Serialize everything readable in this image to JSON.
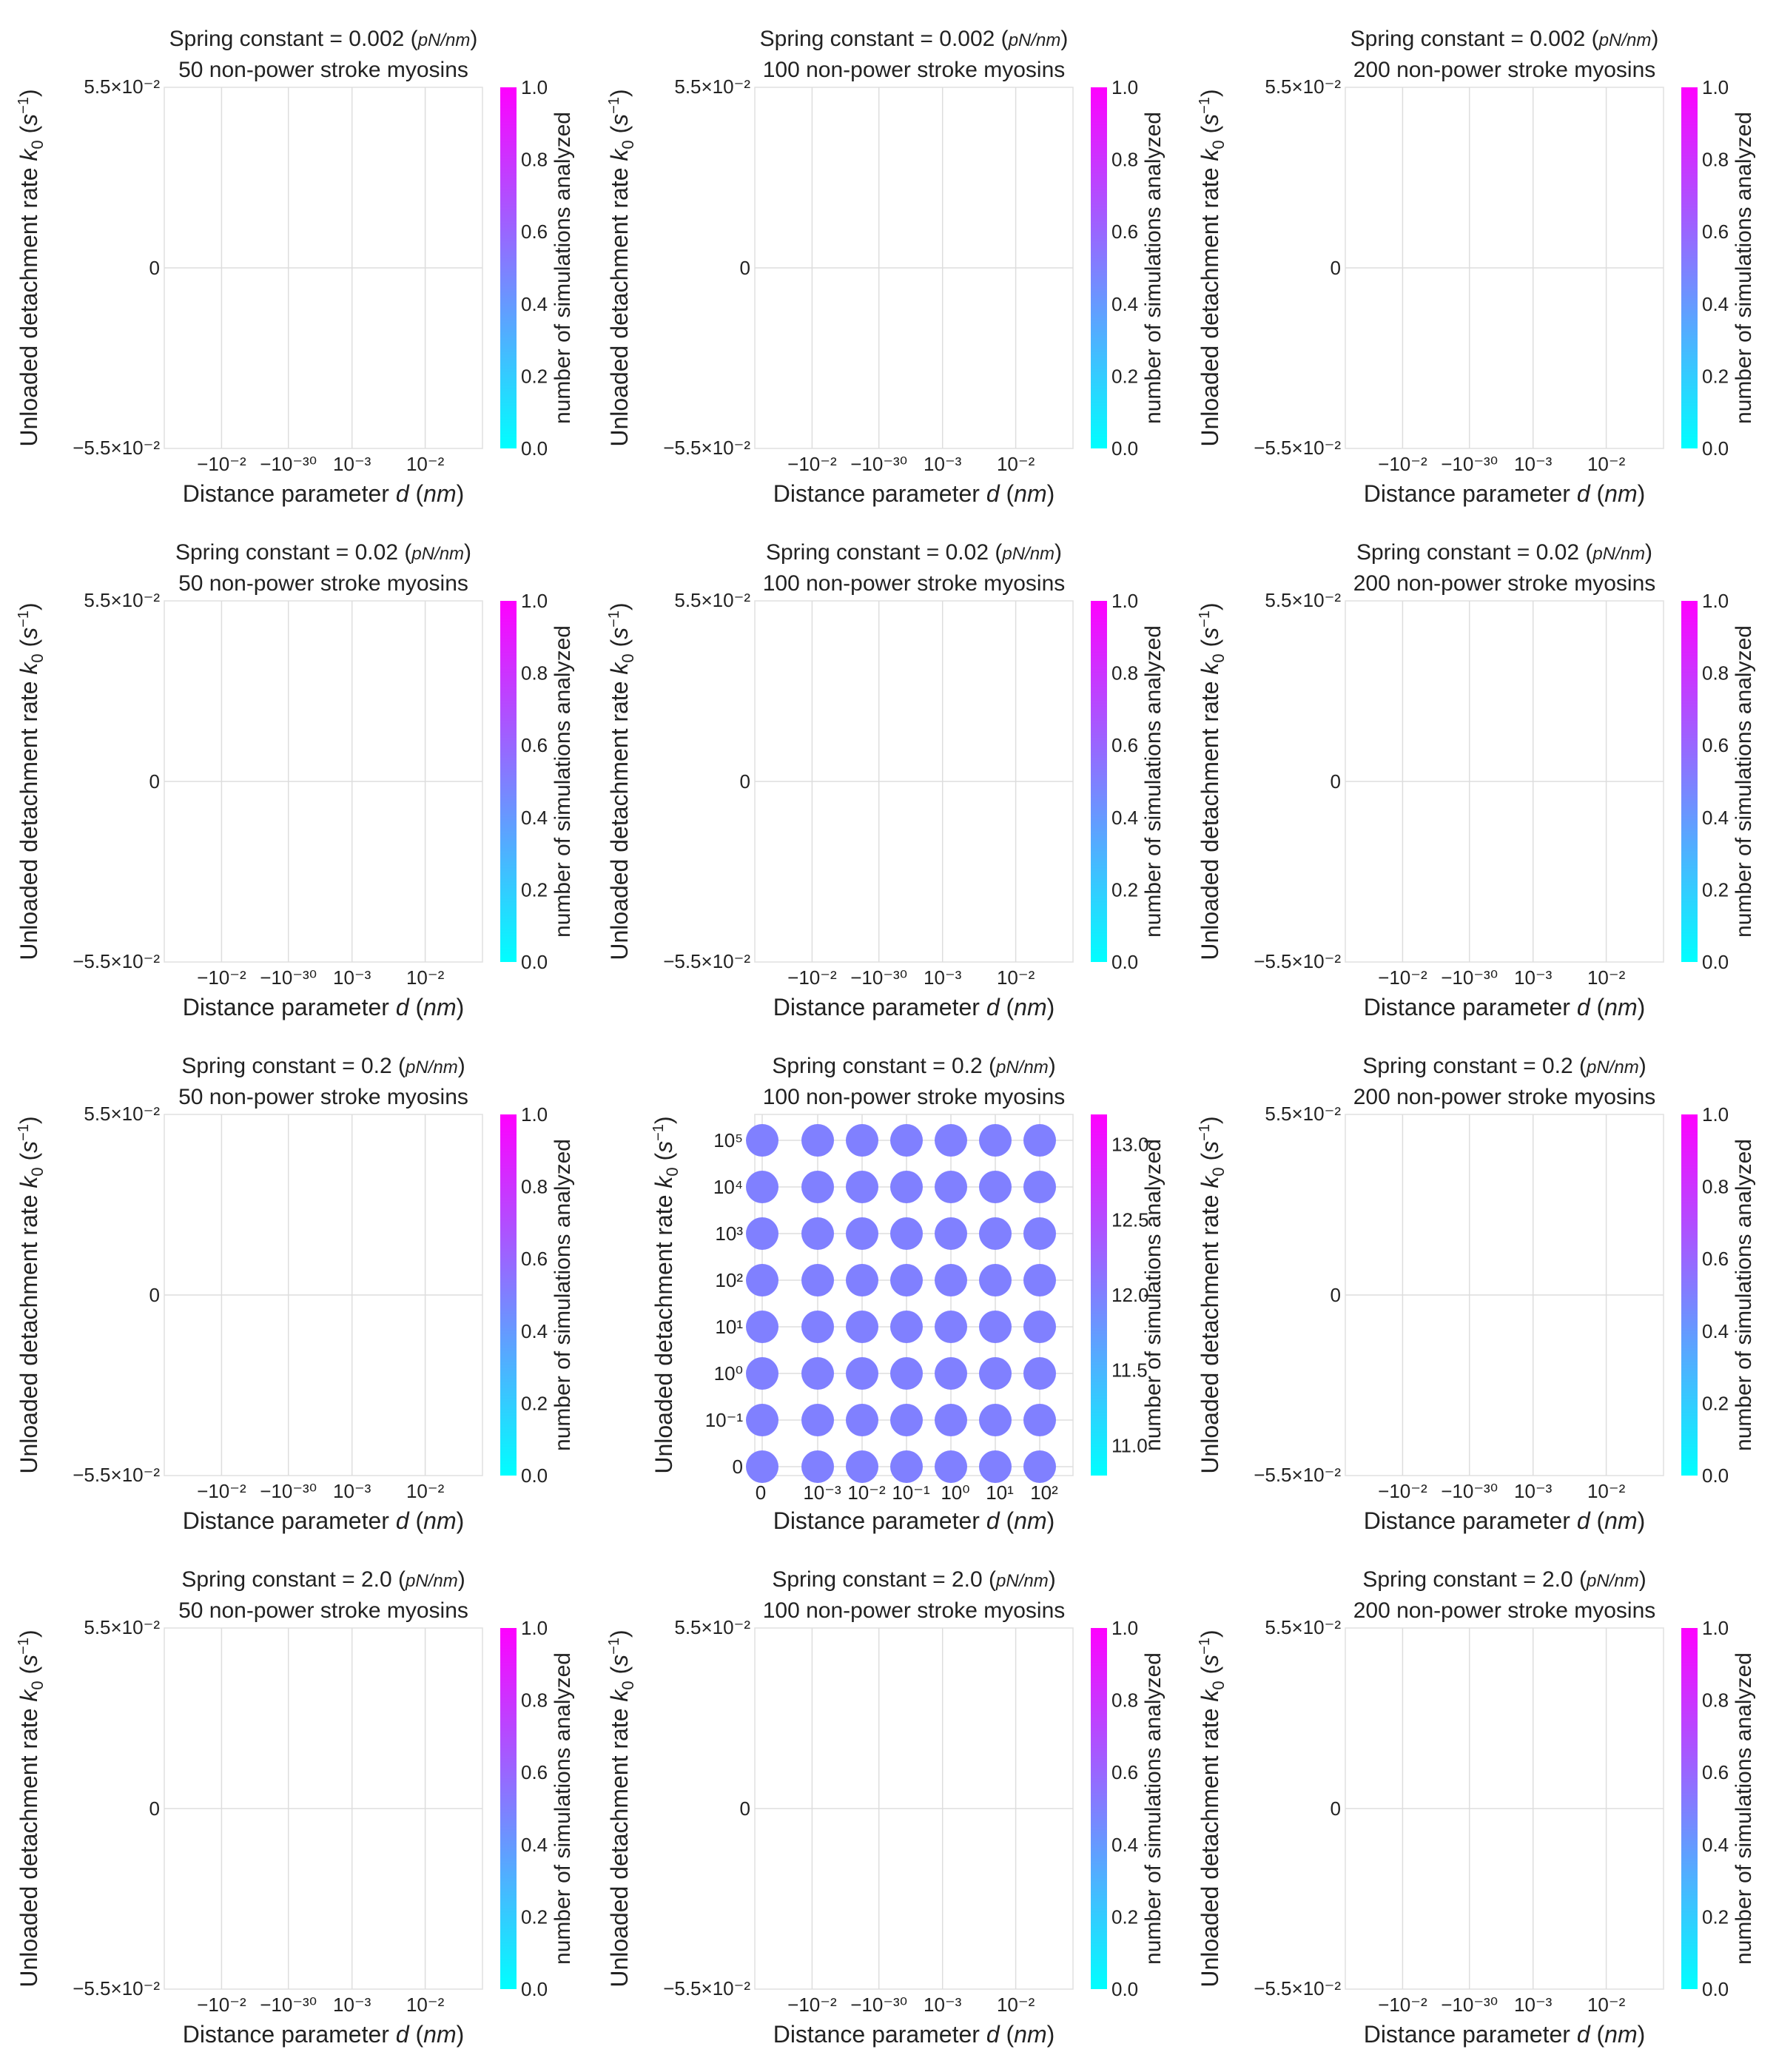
{
  "figure": {
    "title_template": "Spring constant = {k} ({unit_num}/{unit_den})",
    "unit_num": "pN",
    "unit_den": "nm",
    "subtitle_suffix": " non-power stroke myosins",
    "xlabel": "Distance parameter d (nm)",
    "xlabel_main": "Distance parameter ",
    "xlabel_italic": "d",
    "xlabel_unit": "nm",
    "ylabel_main": "Unloaded detachment rate ",
    "ylabel_italic": "k",
    "ylabel_sub": "0",
    "ylabel_unit": "s",
    "ylabel_unit_exp": "−1",
    "colorbar_label": "number of simulations analyzed",
    "colormap": [
      "#00ffff",
      "#ff00ff"
    ],
    "grid": true
  },
  "chart_data": [
    {
      "type": "scatter",
      "row": 0,
      "col": 0,
      "spring_constant": "0.002",
      "myosins": "50",
      "x": [],
      "y": [],
      "values": [],
      "ylim_label": [
        "−5.5×10⁻²",
        "0",
        "5.5×10⁻²"
      ],
      "xticks": [
        "−10⁻²",
        "−10⁻³⁰",
        "10⁻³",
        "10⁻²"
      ],
      "cbar_ticks": [
        "0.0",
        "0.2",
        "0.4",
        "0.6",
        "0.8",
        "1.0"
      ]
    },
    {
      "type": "scatter",
      "row": 0,
      "col": 1,
      "spring_constant": "0.002",
      "myosins": "100",
      "x": [],
      "y": [],
      "values": [],
      "ylim_label": [
        "−5.5×10⁻²",
        "0",
        "5.5×10⁻²"
      ],
      "xticks": [
        "−10⁻²",
        "−10⁻³⁰",
        "10⁻³",
        "10⁻²"
      ],
      "cbar_ticks": [
        "0.0",
        "0.2",
        "0.4",
        "0.6",
        "0.8",
        "1.0"
      ]
    },
    {
      "type": "scatter",
      "row": 0,
      "col": 2,
      "spring_constant": "0.002",
      "myosins": "200",
      "x": [],
      "y": [],
      "values": [],
      "ylim_label": [
        "−5.5×10⁻²",
        "0",
        "5.5×10⁻²"
      ],
      "xticks": [
        "−10⁻²",
        "−10⁻³⁰",
        "10⁻³",
        "10⁻²"
      ],
      "cbar_ticks": [
        "0.0",
        "0.2",
        "0.4",
        "0.6",
        "0.8",
        "1.0"
      ]
    },
    {
      "type": "scatter",
      "row": 1,
      "col": 0,
      "spring_constant": "0.02",
      "myosins": "50",
      "x": [],
      "y": [],
      "values": [],
      "ylim_label": [
        "−5.5×10⁻²",
        "0",
        "5.5×10⁻²"
      ],
      "xticks": [
        "−10⁻²",
        "−10⁻³⁰",
        "10⁻³",
        "10⁻²"
      ],
      "cbar_ticks": [
        "0.0",
        "0.2",
        "0.4",
        "0.6",
        "0.8",
        "1.0"
      ]
    },
    {
      "type": "scatter",
      "row": 1,
      "col": 1,
      "spring_constant": "0.02",
      "myosins": "100",
      "x": [],
      "y": [],
      "values": [],
      "ylim_label": [
        "−5.5×10⁻²",
        "0",
        "5.5×10⁻²"
      ],
      "xticks": [
        "−10⁻²",
        "−10⁻³⁰",
        "10⁻³",
        "10⁻²"
      ],
      "cbar_ticks": [
        "0.0",
        "0.2",
        "0.4",
        "0.6",
        "0.8",
        "1.0"
      ]
    },
    {
      "type": "scatter",
      "row": 1,
      "col": 2,
      "spring_constant": "0.02",
      "myosins": "200",
      "x": [],
      "y": [],
      "values": [],
      "ylim_label": [
        "−5.5×10⁻²",
        "0",
        "5.5×10⁻²"
      ],
      "xticks": [
        "−10⁻²",
        "−10⁻³⁰",
        "10⁻³",
        "10⁻²"
      ],
      "cbar_ticks": [
        "0.0",
        "0.2",
        "0.4",
        "0.6",
        "0.8",
        "1.0"
      ]
    },
    {
      "type": "scatter",
      "row": 2,
      "col": 0,
      "spring_constant": "0.2",
      "myosins": "50",
      "x": [],
      "y": [],
      "values": [],
      "ylim_label": [
        "−5.5×10⁻²",
        "0",
        "5.5×10⁻²"
      ],
      "xticks": [
        "−10⁻²",
        "−10⁻³⁰",
        "10⁻³",
        "10⁻²"
      ],
      "cbar_ticks": [
        "0.0",
        "0.2",
        "0.4",
        "0.6",
        "0.8",
        "1.0"
      ]
    },
    {
      "type": "scatter",
      "row": 2,
      "col": 1,
      "spring_constant": "0.2",
      "myosins": "100",
      "x_scale": "symlog",
      "y_scale": "symlog",
      "x_categories": [
        "0",
        "10⁻³",
        "10⁻²",
        "10⁻¹",
        "10⁰",
        "10¹",
        "10²"
      ],
      "y_categories": [
        "0",
        "10⁻¹",
        "10⁰",
        "10¹",
        "10²",
        "10³",
        "10⁴",
        "10⁵"
      ],
      "grid_values": "all 56 (d, k0) combinations present, each = 12",
      "point_value": 12,
      "clim": [
        10.8,
        13.2
      ],
      "yticks": [
        "0",
        "10⁻¹",
        "10⁰",
        "10¹",
        "10²",
        "10³",
        "10⁴",
        "10⁵"
      ],
      "xticks": [
        "0",
        "10⁻³",
        "10⁻²",
        "10⁻¹",
        "10⁰",
        "10¹",
        "10²"
      ],
      "cbar_ticks": [
        "11.0",
        "11.5",
        "12.0",
        "12.5",
        "13.0"
      ]
    },
    {
      "type": "scatter",
      "row": 2,
      "col": 2,
      "spring_constant": "0.2",
      "myosins": "200",
      "x": [],
      "y": [],
      "values": [],
      "ylim_label": [
        "−5.5×10⁻²",
        "0",
        "5.5×10⁻²"
      ],
      "xticks": [
        "−10⁻²",
        "−10⁻³⁰",
        "10⁻³",
        "10⁻²"
      ],
      "cbar_ticks": [
        "0.0",
        "0.2",
        "0.4",
        "0.6",
        "0.8",
        "1.0"
      ]
    },
    {
      "type": "scatter",
      "row": 3,
      "col": 0,
      "spring_constant": "2.0",
      "myosins": "50",
      "x": [],
      "y": [],
      "values": [],
      "ylim_label": [
        "−5.5×10⁻²",
        "0",
        "5.5×10⁻²"
      ],
      "xticks": [
        "−10⁻²",
        "−10⁻³⁰",
        "10⁻³",
        "10⁻²"
      ],
      "cbar_ticks": [
        "0.0",
        "0.2",
        "0.4",
        "0.6",
        "0.8",
        "1.0"
      ]
    },
    {
      "type": "scatter",
      "row": 3,
      "col": 1,
      "spring_constant": "2.0",
      "myosins": "100",
      "x": [],
      "y": [],
      "values": [],
      "ylim_label": [
        "−5.5×10⁻²",
        "0",
        "5.5×10⁻²"
      ],
      "xticks": [
        "−10⁻²",
        "−10⁻³⁰",
        "10⁻³",
        "10⁻²"
      ],
      "cbar_ticks": [
        "0.0",
        "0.2",
        "0.4",
        "0.6",
        "0.8",
        "1.0"
      ]
    },
    {
      "type": "scatter",
      "row": 3,
      "col": 2,
      "spring_constant": "2.0",
      "myosins": "200",
      "x": [],
      "y": [],
      "values": [],
      "ylim_label": [
        "−5.5×10⁻²",
        "0",
        "5.5×10⁻²"
      ],
      "xticks": [
        "−10⁻²",
        "−10⁻³⁰",
        "10⁻³",
        "10⁻²"
      ],
      "cbar_ticks": [
        "0.0",
        "0.2",
        "0.4",
        "0.6",
        "0.8",
        "1.0"
      ]
    }
  ]
}
